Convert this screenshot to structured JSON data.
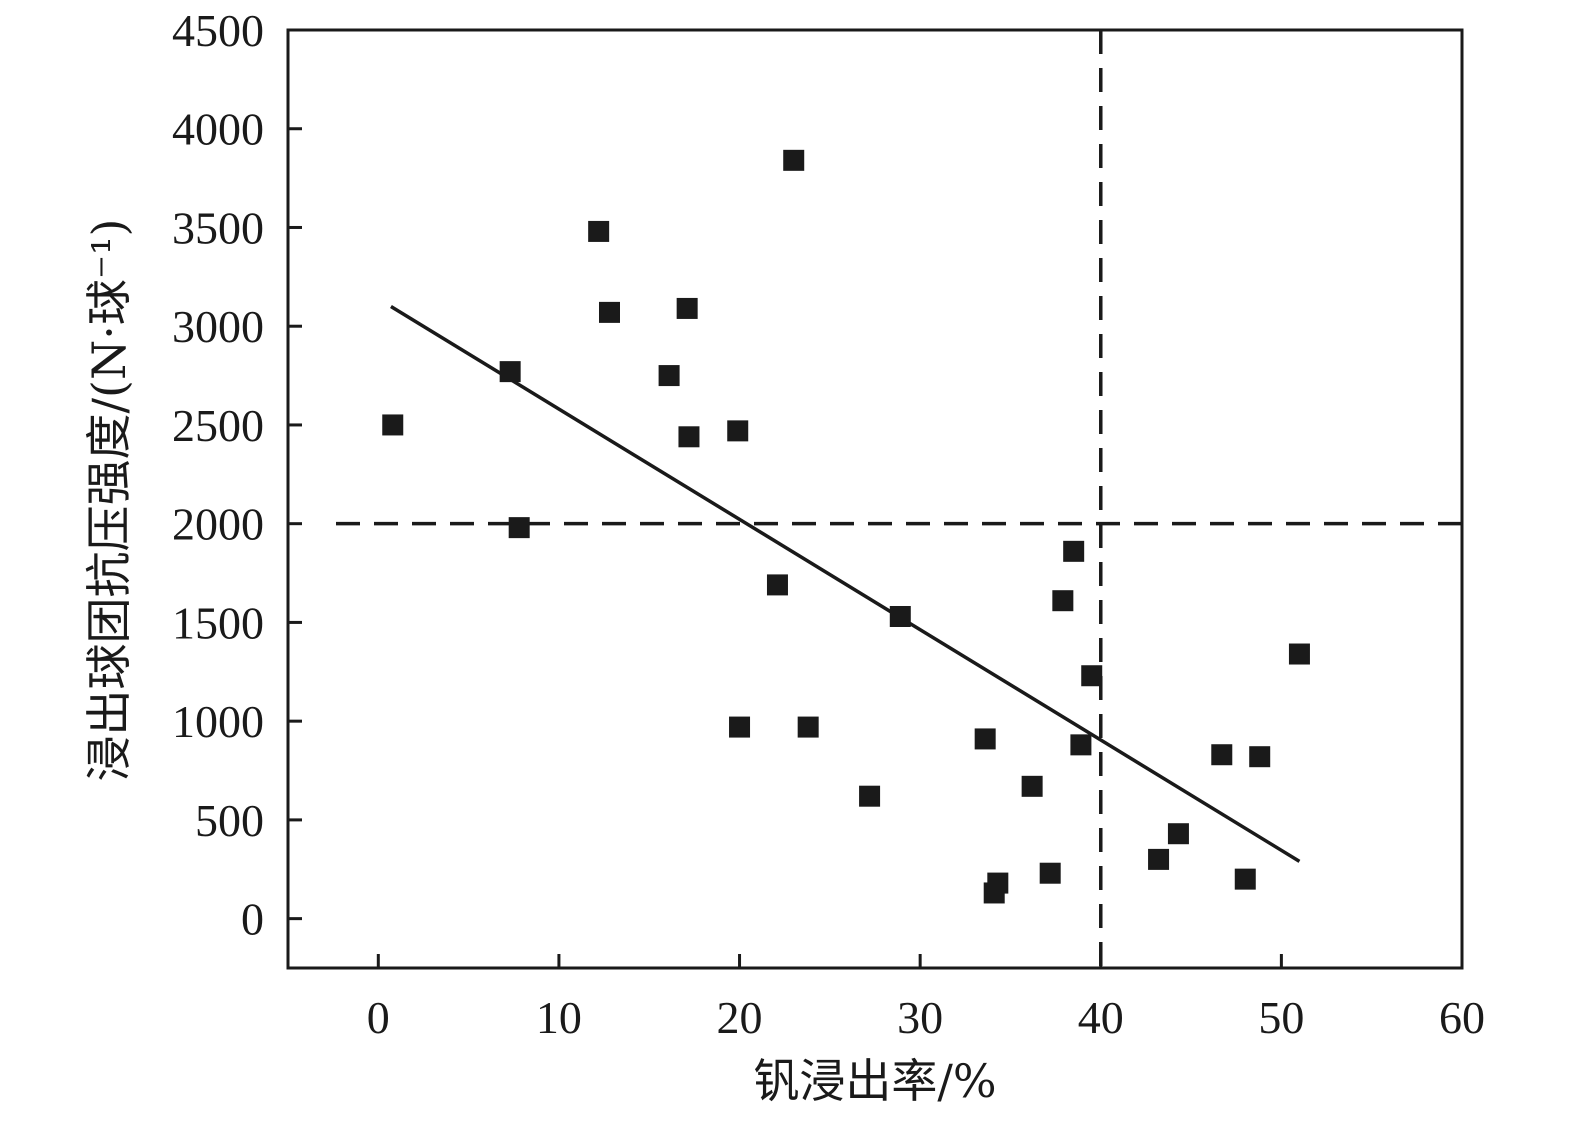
{
  "chart_data": {
    "type": "scatter",
    "xlabel": "钒浸出率/%",
    "ylabel": "浸出球团抗压强度/(N·球⁻¹)",
    "xlim": [
      -5,
      60
    ],
    "ylim": [
      -250,
      4500
    ],
    "x_ticks": [
      0,
      10,
      20,
      30,
      40,
      50,
      60
    ],
    "y_ticks": [
      0,
      500,
      1000,
      1500,
      2000,
      2500,
      3000,
      3500,
      4000,
      4500
    ],
    "grid": false,
    "legend": "none",
    "marker": "square",
    "colors": {
      "marker": "#1a1a1a",
      "line": "#1a1a1a",
      "axis": "#1a1a1a"
    },
    "series": [
      {
        "points": [
          {
            "x": 0.8,
            "y": 2500
          },
          {
            "x": 7.3,
            "y": 2770
          },
          {
            "x": 7.8,
            "y": 1980
          },
          {
            "x": 12.2,
            "y": 3480
          },
          {
            "x": 12.8,
            "y": 3070
          },
          {
            "x": 16.1,
            "y": 2750
          },
          {
            "x": 17.1,
            "y": 3090
          },
          {
            "x": 17.2,
            "y": 2440
          },
          {
            "x": 19.9,
            "y": 2470
          },
          {
            "x": 20.0,
            "y": 970
          },
          {
            "x": 22.1,
            "y": 1690
          },
          {
            "x": 23.0,
            "y": 3840
          },
          {
            "x": 23.8,
            "y": 970
          },
          {
            "x": 27.2,
            "y": 620
          },
          {
            "x": 28.9,
            "y": 1530
          },
          {
            "x": 33.6,
            "y": 910
          },
          {
            "x": 34.1,
            "y": 130
          },
          {
            "x": 34.3,
            "y": 180
          },
          {
            "x": 36.2,
            "y": 670
          },
          {
            "x": 37.2,
            "y": 230
          },
          {
            "x": 37.9,
            "y": 1610
          },
          {
            "x": 38.5,
            "y": 1860
          },
          {
            "x": 38.9,
            "y": 880
          },
          {
            "x": 39.5,
            "y": 1230
          },
          {
            "x": 43.2,
            "y": 300
          },
          {
            "x": 44.3,
            "y": 430
          },
          {
            "x": 46.7,
            "y": 830
          },
          {
            "x": 48.0,
            "y": 200
          },
          {
            "x": 48.8,
            "y": 820
          },
          {
            "x": 51.0,
            "y": 1340
          }
        ]
      }
    ],
    "fit_line": {
      "x": [
        0.7,
        51.0
      ],
      "y": [
        3100,
        290
      ]
    },
    "reference_lines": [
      {
        "orientation": "vertical",
        "value": 40,
        "style": "dashed"
      },
      {
        "orientation": "horizontal",
        "value": 2000,
        "style": "dashed"
      }
    ]
  }
}
